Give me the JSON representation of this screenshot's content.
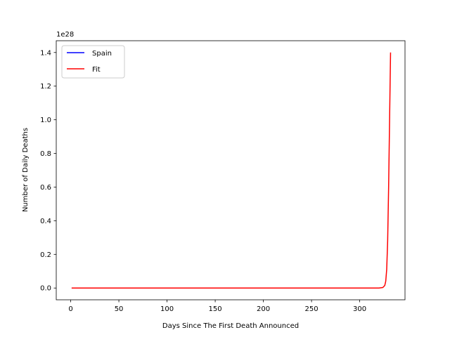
{
  "chart_data": {
    "type": "line",
    "xlabel": "Days Since The First Death Announced",
    "ylabel": "Number of Daily Deaths",
    "y_offset_label": "1e28",
    "xlim": [
      -15,
      347
    ],
    "ylim": [
      -0.07,
      1.47
    ],
    "xticks": [
      0,
      50,
      100,
      150,
      200,
      250,
      300
    ],
    "yticks": [
      0.0,
      0.2,
      0.4,
      0.6,
      0.8,
      1.0,
      1.2,
      1.4
    ],
    "grid": false,
    "legend": {
      "placement": "top-left",
      "entries": [
        "Spain",
        "Fit"
      ]
    },
    "series": [
      {
        "name": "Spain",
        "color": "#0000ff",
        "x": [
          1,
          272
        ],
        "y": [
          0.0,
          0.0
        ]
      },
      {
        "name": "Fit",
        "color": "#ff0000",
        "x": [
          1,
          100,
          200,
          272,
          300,
          320,
          324,
          326,
          327,
          328,
          329,
          330,
          331,
          332
        ],
        "y": [
          0.0,
          0.0,
          0.0,
          0.0,
          0.0,
          0.0,
          0.003,
          0.015,
          0.04,
          0.11,
          0.28,
          0.6,
          1.0,
          1.4
        ]
      }
    ]
  }
}
